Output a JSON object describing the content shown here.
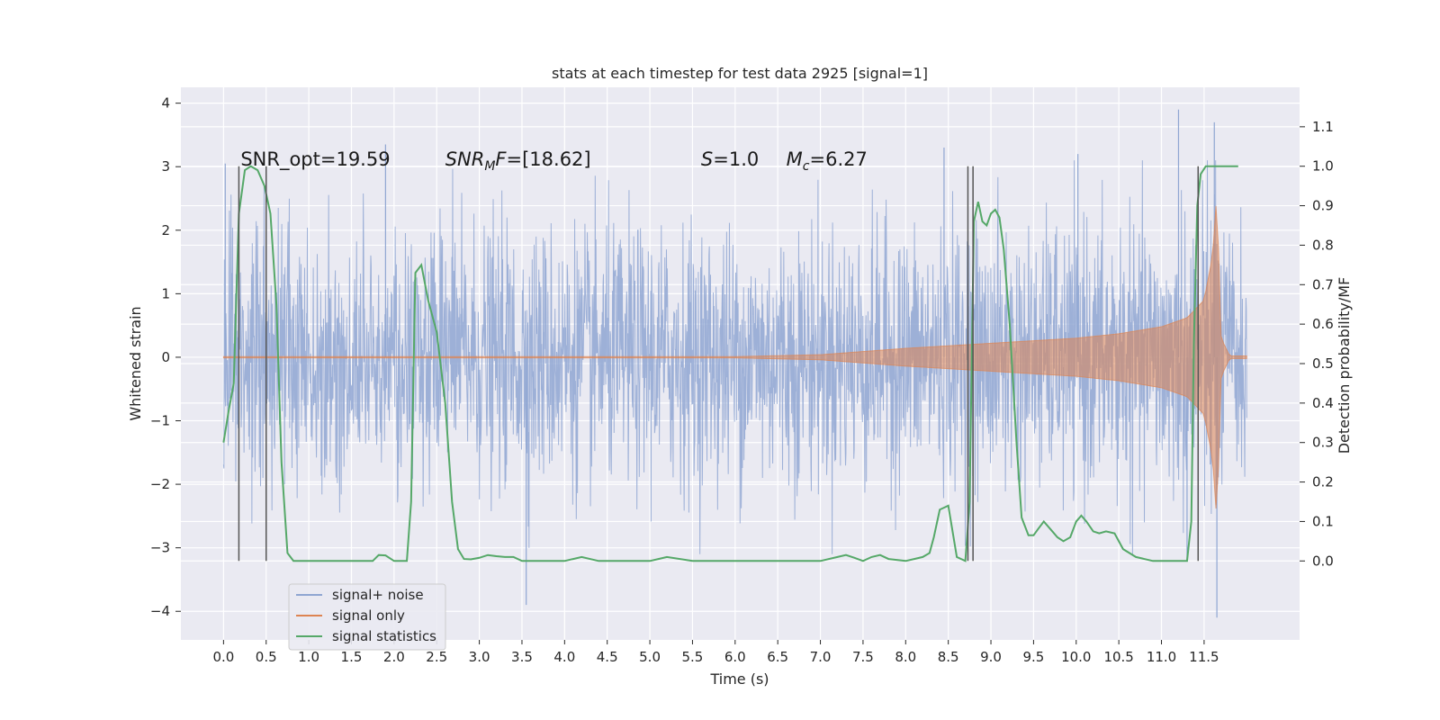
{
  "chart_data": {
    "type": "line",
    "title": "stats at each timestep for test data 2925 [signal=1]",
    "xlabel": "Time (s)",
    "ylabel": "Whitened strain",
    "ylabel_right": "Detection probability/MF",
    "xlim": [
      -0.5,
      12.62
    ],
    "ylim": [
      -4.45,
      4.25
    ],
    "ylim_right": [
      -0.2,
      1.2
    ],
    "x_ticks": [
      "0.0",
      "0.5",
      "1.0",
      "1.5",
      "2.0",
      "2.5",
      "3.0",
      "3.5",
      "4.0",
      "4.5",
      "5.0",
      "5.5",
      "6.0",
      "6.5",
      "7.0",
      "7.5",
      "8.0",
      "8.5",
      "9.0",
      "9.5",
      "10.0",
      "10.5",
      "11.0",
      "11.5"
    ],
    "y_ticks": [
      "-4",
      "-3",
      "-2",
      "-1",
      "0",
      "1",
      "2",
      "3",
      "4"
    ],
    "y_ticks_right": [
      "0.0",
      "0.1",
      "0.2",
      "0.3",
      "0.4",
      "0.5",
      "0.6",
      "0.7",
      "0.8",
      "0.9",
      "1.0",
      "1.1"
    ],
    "grid": true,
    "legend_position": "bottom-left",
    "annotations": [
      {
        "prefix": "SNR_opt=",
        "value": "19.59",
        "x": 0.2
      },
      {
        "prefix": "SNR",
        "sub": "M",
        "suffix": "F=",
        "value": "[18.62]",
        "x": 2.6
      },
      {
        "prefix": "S",
        "suffix": "=",
        "value": "1.0",
        "x": 5.6
      },
      {
        "prefix": "M",
        "sub": "c",
        "suffix": "=",
        "value": "6.27",
        "x": 6.6
      }
    ],
    "vertical_lines": [
      0.18,
      0.5,
      8.73,
      8.79,
      11.43
    ],
    "series": [
      {
        "name": "signal+ noise",
        "color": "#8fa6d2",
        "t_range": [
          0.0,
          12.0
        ],
        "noise_sigma": 1.0,
        "outliers": [
          {
            "x": 0.02,
            "y": 3.05
          },
          {
            "x": 1.9,
            "y": 3.35
          },
          {
            "x": 3.55,
            "y": -3.9
          },
          {
            "x": 8.45,
            "y": 3.3
          },
          {
            "x": 10.02,
            "y": 3.2
          },
          {
            "x": 11.2,
            "y": 3.9
          },
          {
            "x": 11.3,
            "y": -3.2
          },
          {
            "x": 11.62,
            "y": 3.7
          },
          {
            "x": 11.65,
            "y": -4.1
          }
        ]
      },
      {
        "name": "signal only",
        "color": "#dd8452",
        "t_range": [
          0.0,
          12.0
        ],
        "envelope_x": [
          0.0,
          6.0,
          7.0,
          8.0,
          9.0,
          10.0,
          10.5,
          11.0,
          11.3,
          11.5,
          11.6,
          11.65,
          11.7,
          11.8,
          12.0
        ],
        "envelope_y": [
          0.01,
          0.01,
          0.04,
          0.14,
          0.22,
          0.3,
          0.37,
          0.48,
          0.62,
          0.9,
          1.6,
          2.6,
          0.3,
          0.02,
          0.02
        ]
      },
      {
        "name": "signal statistics",
        "color": "#55a868",
        "x": [
          0.0,
          0.06,
          0.12,
          0.18,
          0.25,
          0.32,
          0.4,
          0.48,
          0.55,
          0.62,
          0.68,
          0.75,
          0.82,
          0.9,
          1.0,
          1.5,
          1.75,
          1.82,
          1.9,
          2.0,
          2.08,
          2.15,
          2.2,
          2.25,
          2.32,
          2.4,
          2.5,
          2.6,
          2.68,
          2.75,
          2.82,
          2.9,
          3.0,
          3.1,
          3.2,
          3.3,
          3.4,
          3.5,
          4.0,
          4.1,
          4.2,
          4.4,
          4.8,
          5.0,
          5.1,
          5.2,
          5.5,
          5.9,
          6.0,
          6.1,
          6.3,
          7.0,
          7.2,
          7.3,
          7.4,
          7.5,
          7.6,
          7.7,
          7.8,
          8.0,
          8.1,
          8.2,
          8.28,
          8.33,
          8.4,
          8.5,
          8.6,
          8.7,
          8.75,
          8.8,
          8.85,
          8.9,
          8.95,
          9.0,
          9.05,
          9.1,
          9.15,
          9.22,
          9.3,
          9.36,
          9.44,
          9.5,
          9.55,
          9.62,
          9.7,
          9.78,
          9.85,
          9.93,
          10.0,
          10.06,
          10.12,
          10.2,
          10.27,
          10.35,
          10.45,
          10.55,
          10.7,
          10.9,
          11.0,
          11.2,
          11.3,
          11.35,
          11.38,
          11.42,
          11.46,
          11.52,
          11.6,
          11.9
        ],
        "values": [
          0.3,
          0.38,
          0.45,
          0.88,
          0.99,
          1.0,
          0.99,
          0.95,
          0.88,
          0.65,
          0.25,
          0.02,
          0.0,
          0.0,
          0.0,
          0.0,
          0.0,
          0.015,
          0.014,
          0.0,
          0.0,
          0.0,
          0.15,
          0.73,
          0.75,
          0.66,
          0.58,
          0.4,
          0.15,
          0.03,
          0.005,
          0.004,
          0.008,
          0.015,
          0.012,
          0.01,
          0.01,
          0.0,
          0.0,
          0.005,
          0.01,
          0.0,
          0.0,
          0.0,
          0.005,
          0.01,
          0.0,
          0.0,
          0.0,
          0.0,
          0.0,
          0.0,
          0.01,
          0.015,
          0.008,
          0.0,
          0.01,
          0.015,
          0.005,
          0.0,
          0.005,
          0.01,
          0.02,
          0.06,
          0.13,
          0.14,
          0.01,
          0.0,
          0.15,
          0.86,
          0.91,
          0.86,
          0.85,
          0.88,
          0.89,
          0.87,
          0.79,
          0.6,
          0.3,
          0.11,
          0.065,
          0.065,
          0.08,
          0.1,
          0.08,
          0.06,
          0.05,
          0.06,
          0.1,
          0.115,
          0.1,
          0.075,
          0.07,
          0.075,
          0.07,
          0.03,
          0.01,
          0.0,
          0.0,
          0.0,
          0.0,
          0.1,
          0.55,
          0.9,
          0.98,
          1.0,
          1.0,
          1.0
        ]
      }
    ]
  }
}
